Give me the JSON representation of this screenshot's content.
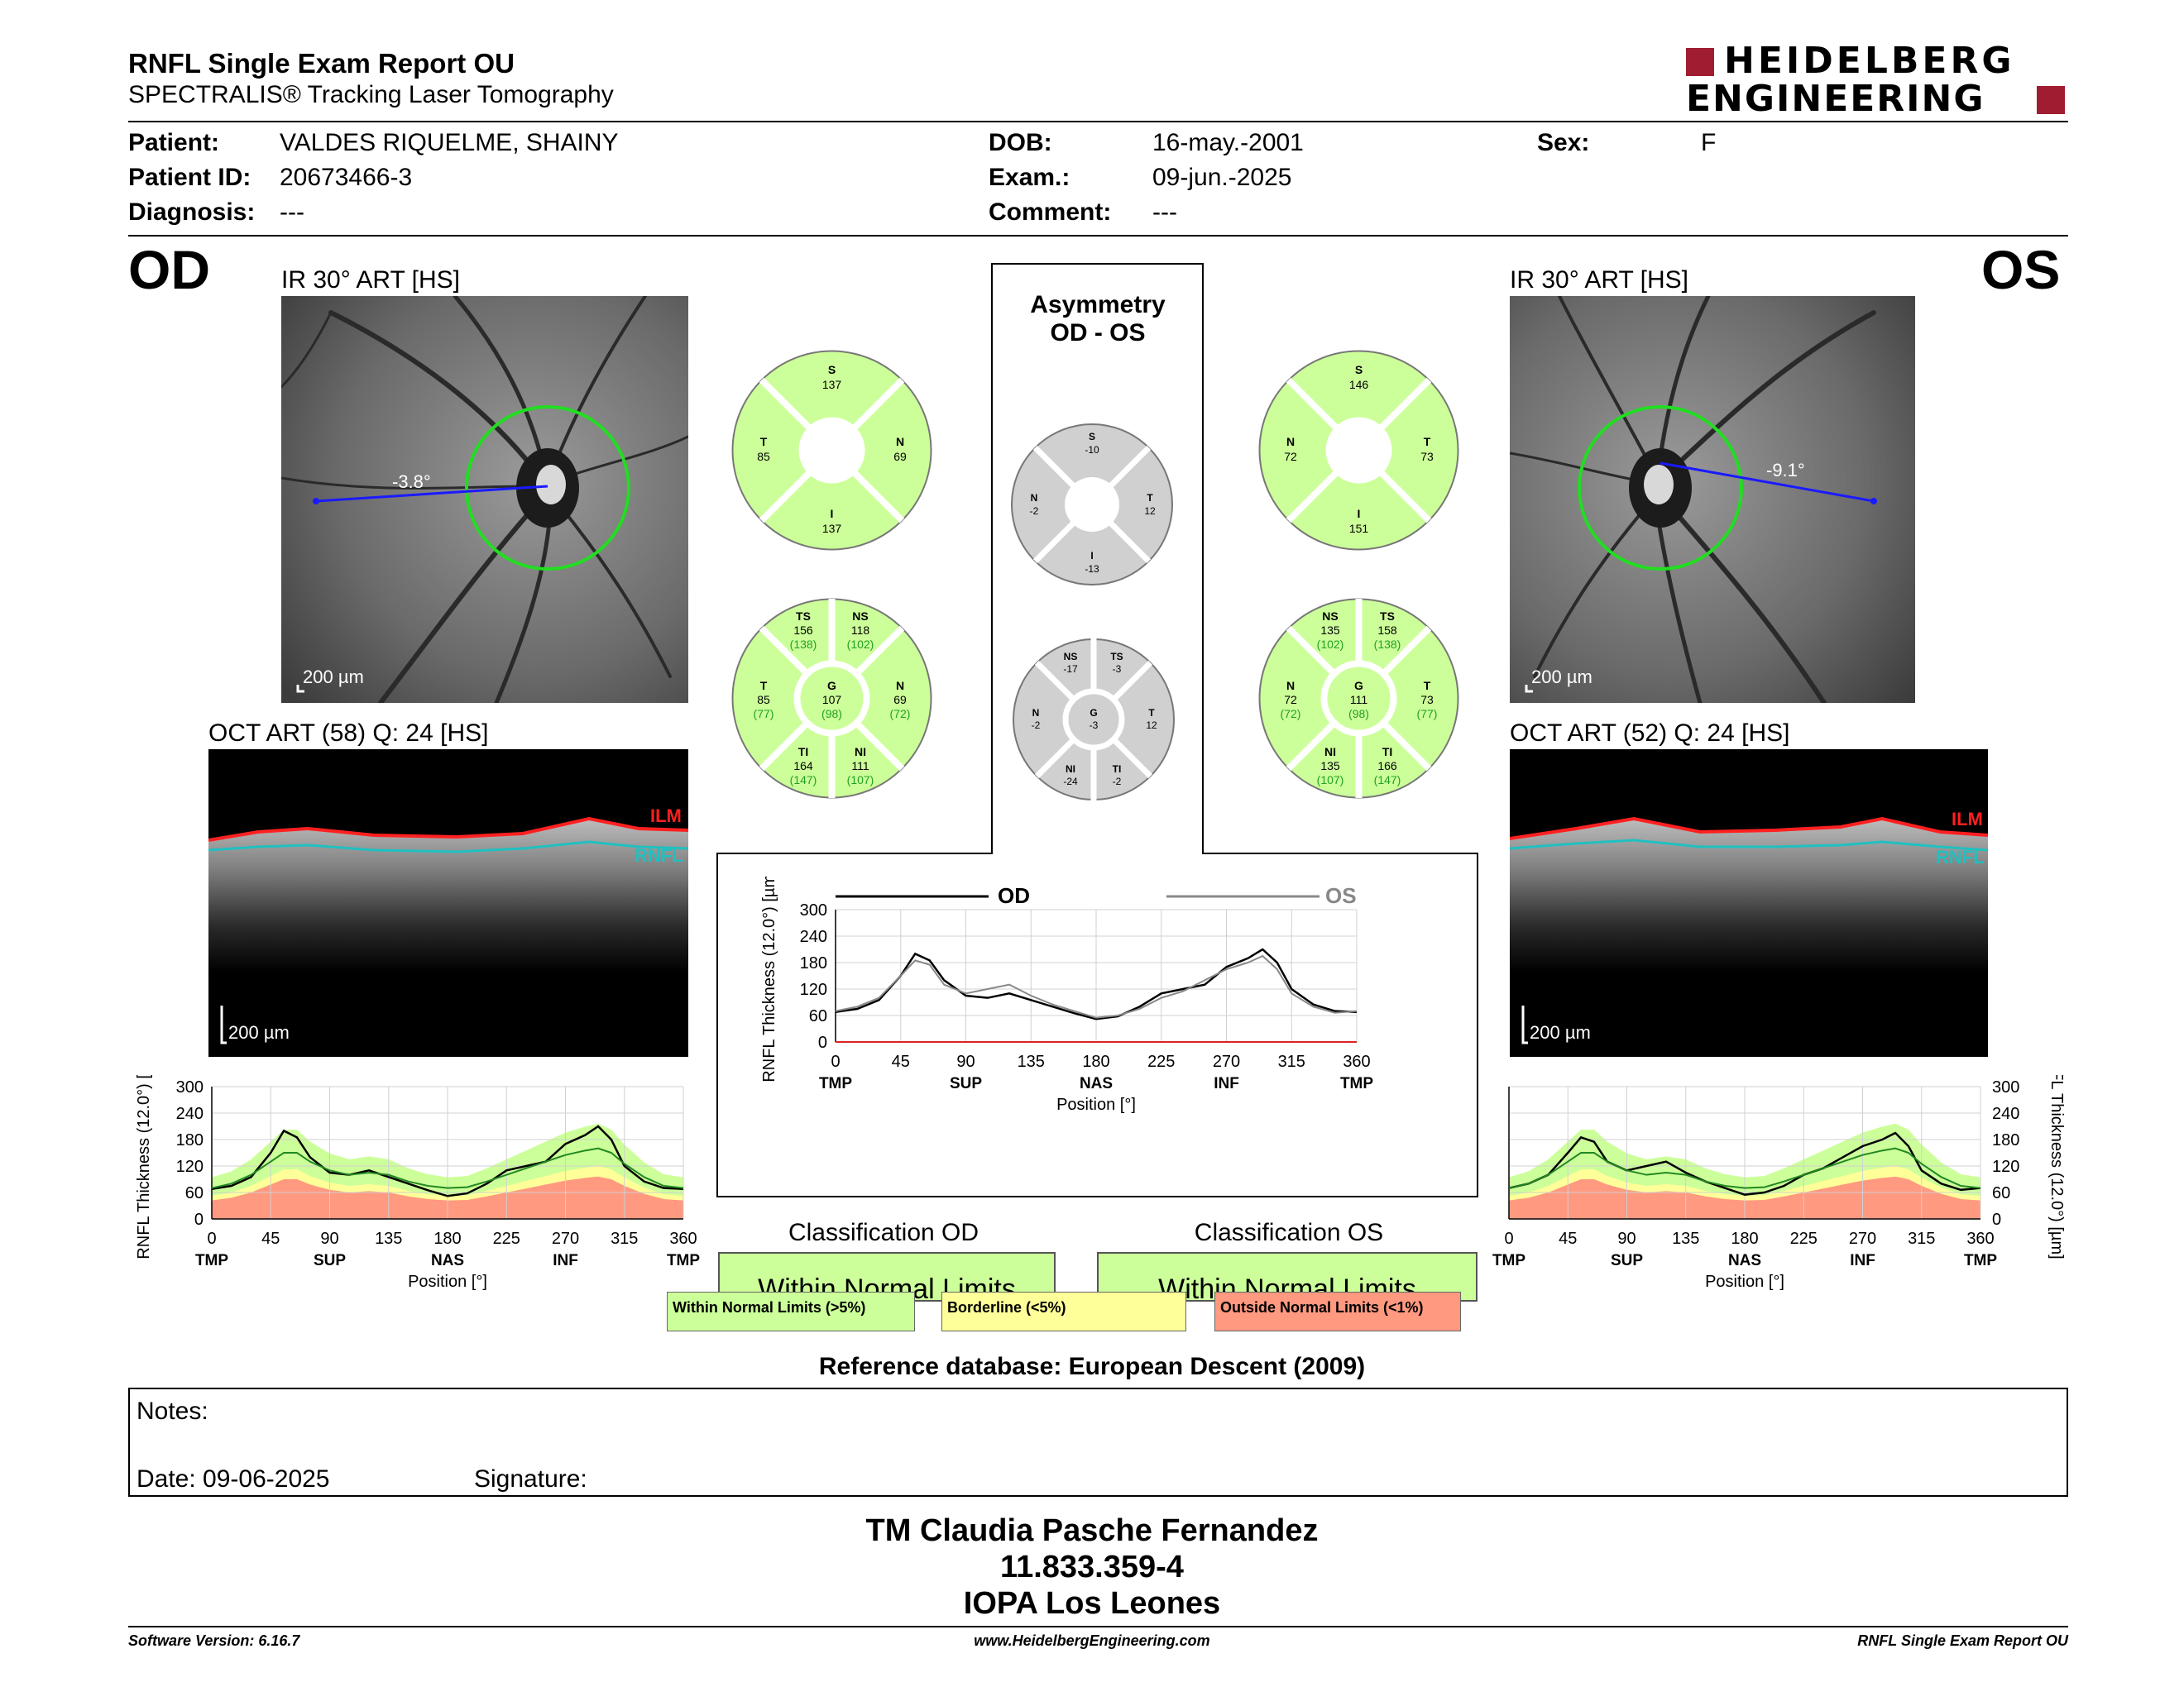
{
  "header": {
    "title": "RNFL Single Exam Report OU",
    "subtitle": "SPECTRALIS® Tracking Laser Tomography",
    "logo_line1": "HEIDELBERG",
    "logo_line2": "ENGINEERING"
  },
  "patient": {
    "patient_label": "Patient:",
    "patient_value": "VALDES RIQUELME, SHAINY",
    "id_label": "Patient ID:",
    "id_value": "20673466-3",
    "diag_label": "Diagnosis:",
    "diag_value": "---",
    "dob_label": "DOB:",
    "dob_value": "16-may.-2001",
    "exam_label": "Exam.:",
    "exam_value": "09-jun.-2025",
    "comment_label": "Comment:",
    "comment_value": "---",
    "sex_label": "Sex:",
    "sex_value": "F"
  },
  "od": {
    "eye": "OD",
    "ir_title": "IR 30° ART [HS]",
    "ir_scale": "200 µm",
    "angle": "-3.8°",
    "oct_title": "OCT ART (58) Q: 24 [HS]",
    "oct_scale": "200 µm",
    "ilm": "ILM",
    "rnfl": "RNFL",
    "quad": {
      "S": "137",
      "T": "85",
      "N": "69",
      "I": "137"
    },
    "sect": {
      "TS": "156",
      "TS_ref": "(138)",
      "NS": "118",
      "NS_ref": "(102)",
      "T": "85",
      "T_ref": "(77)",
      "G": "107",
      "G_ref": "(98)",
      "N": "69",
      "N_ref": "(72)",
      "TI": "164",
      "TI_ref": "(147)",
      "NI": "111",
      "NI_ref": "(107)"
    },
    "classification_title": "Classification OD",
    "classification": "Within Normal Limits"
  },
  "os": {
    "eye": "OS",
    "ir_title": "IR 30° ART [HS]",
    "ir_scale": "200 µm",
    "angle": "-9.1°",
    "oct_title": "OCT ART (52) Q: 24 [HS]",
    "oct_scale": "200 µm",
    "ilm": "ILM",
    "rnfl": "RNFL",
    "quad": {
      "S": "146",
      "N": "72",
      "T": "73",
      "I": "151"
    },
    "sect": {
      "NS": "135",
      "NS_ref": "(102)",
      "TS": "158",
      "TS_ref": "(138)",
      "N": "72",
      "N_ref": "(72)",
      "G": "111",
      "G_ref": "(98)",
      "T": "73",
      "T_ref": "(77)",
      "NI": "135",
      "NI_ref": "(107)",
      "TI": "166",
      "TI_ref": "(147)"
    },
    "classification_title": "Classification OS",
    "classification": "Within Normal Limits"
  },
  "asymmetry": {
    "title1": "Asymmetry",
    "title2": "OD - OS",
    "quad": {
      "S": "-10",
      "N": "-2",
      "T": "12",
      "I": "-13"
    },
    "sect": {
      "NS": "-17",
      "TS": "-3",
      "N": "-2",
      "G": "-3",
      "T": "12",
      "NI": "-24",
      "TI": "-2"
    }
  },
  "legend": {
    "wnl": "Within Normal Limits (>5%)",
    "bl": "Borderline (<5%)",
    "onl": "Outside Normal Limits (<1%)"
  },
  "reference": "Reference database: European Descent (2009)",
  "notes": {
    "notes_label": "Notes:",
    "date_label": "Date: 09-06-2025",
    "signature_label": "Signature:"
  },
  "signature": {
    "line1": "TM Claudia Pasche Fernandez",
    "line2": "11.833.359-4",
    "line3": "IOPA Los Leones"
  },
  "footer": {
    "left": "Software Version: 6.16.7",
    "center": "www.HeidelbergEngineering.com",
    "right": "RNFL Single Exam Report OU"
  },
  "colors": {
    "green": "#ccff99",
    "yellow": "#ffff99",
    "red": "#ff9980",
    "gray": "#d0d0d0",
    "brand": "#a01c30"
  },
  "chart_data": [
    {
      "type": "line",
      "title": "",
      "xlabel": "Position [°]",
      "ylabel": "RNFL Thickness (12.0°) [µm]",
      "xlim": [
        0,
        360
      ],
      "ylim": [
        0,
        300
      ],
      "xticks": [
        "0",
        "45",
        "90",
        "135",
        "180",
        "225",
        "270",
        "315",
        "360"
      ],
      "yticks": [
        "0",
        "60",
        "120",
        "180",
        "240",
        "300"
      ],
      "region_labels": [
        "TMP",
        "SUP",
        "NAS",
        "INF",
        "TMP"
      ],
      "legend": [
        "OD",
        "OS"
      ],
      "x": [
        0,
        15,
        30,
        45,
        55,
        65,
        75,
        90,
        105,
        120,
        135,
        150,
        165,
        180,
        195,
        210,
        225,
        240,
        255,
        270,
        285,
        295,
        305,
        315,
        330,
        345,
        360
      ],
      "series": [
        {
          "name": "OD",
          "values": [
            68,
            75,
            95,
            150,
            200,
            185,
            140,
            105,
            100,
            110,
            95,
            80,
            65,
            52,
            58,
            80,
            110,
            120,
            130,
            170,
            190,
            210,
            180,
            120,
            85,
            70,
            68
          ]
        },
        {
          "name": "OS",
          "values": [
            70,
            80,
            100,
            150,
            185,
            175,
            130,
            110,
            120,
            130,
            105,
            85,
            70,
            55,
            60,
            75,
            100,
            115,
            140,
            165,
            180,
            195,
            165,
            110,
            80,
            66,
            70
          ]
        }
      ]
    },
    {
      "type": "line",
      "title": "",
      "xlabel": "Position [°]",
      "ylabel": "RNFL Thickness (12.0°) [µm]",
      "xlim": [
        0,
        360
      ],
      "ylim": [
        0,
        300
      ],
      "series_label": "OD",
      "x": [
        0,
        15,
        30,
        45,
        55,
        65,
        75,
        90,
        105,
        120,
        135,
        150,
        165,
        180,
        195,
        210,
        225,
        240,
        255,
        270,
        285,
        295,
        305,
        315,
        330,
        345,
        360
      ],
      "series": [
        {
          "name": "OD",
          "values": [
            68,
            75,
            95,
            150,
            200,
            185,
            140,
            105,
            100,
            110,
            95,
            80,
            65,
            52,
            58,
            80,
            110,
            120,
            130,
            170,
            190,
            210,
            180,
            120,
            85,
            70,
            68
          ]
        },
        {
          "name": "Normal mean",
          "values": [
            70,
            80,
            100,
            130,
            150,
            150,
            130,
            110,
            100,
            105,
            100,
            85,
            75,
            70,
            72,
            85,
            100,
            115,
            130,
            145,
            155,
            160,
            150,
            125,
            95,
            75,
            70
          ]
        }
      ]
    },
    {
      "type": "line",
      "title": "",
      "xlabel": "Position [°]",
      "ylabel": "RNFL Thickness (12.0°) [µm]",
      "xlim": [
        0,
        360
      ],
      "ylim": [
        0,
        300
      ],
      "series_label": "OS",
      "x": [
        0,
        15,
        30,
        45,
        55,
        65,
        75,
        90,
        105,
        120,
        135,
        150,
        165,
        180,
        195,
        210,
        225,
        240,
        255,
        270,
        285,
        295,
        305,
        315,
        330,
        345,
        360
      ],
      "series": [
        {
          "name": "OS",
          "values": [
            70,
            80,
            100,
            150,
            185,
            175,
            130,
            110,
            120,
            130,
            105,
            85,
            70,
            55,
            60,
            75,
            100,
            115,
            140,
            165,
            180,
            195,
            165,
            110,
            80,
            66,
            70
          ]
        },
        {
          "name": "Normal mean",
          "values": [
            70,
            80,
            100,
            130,
            150,
            150,
            130,
            110,
            100,
            105,
            100,
            85,
            75,
            70,
            72,
            85,
            100,
            115,
            130,
            145,
            155,
            160,
            150,
            125,
            95,
            75,
            70
          ]
        }
      ]
    }
  ]
}
